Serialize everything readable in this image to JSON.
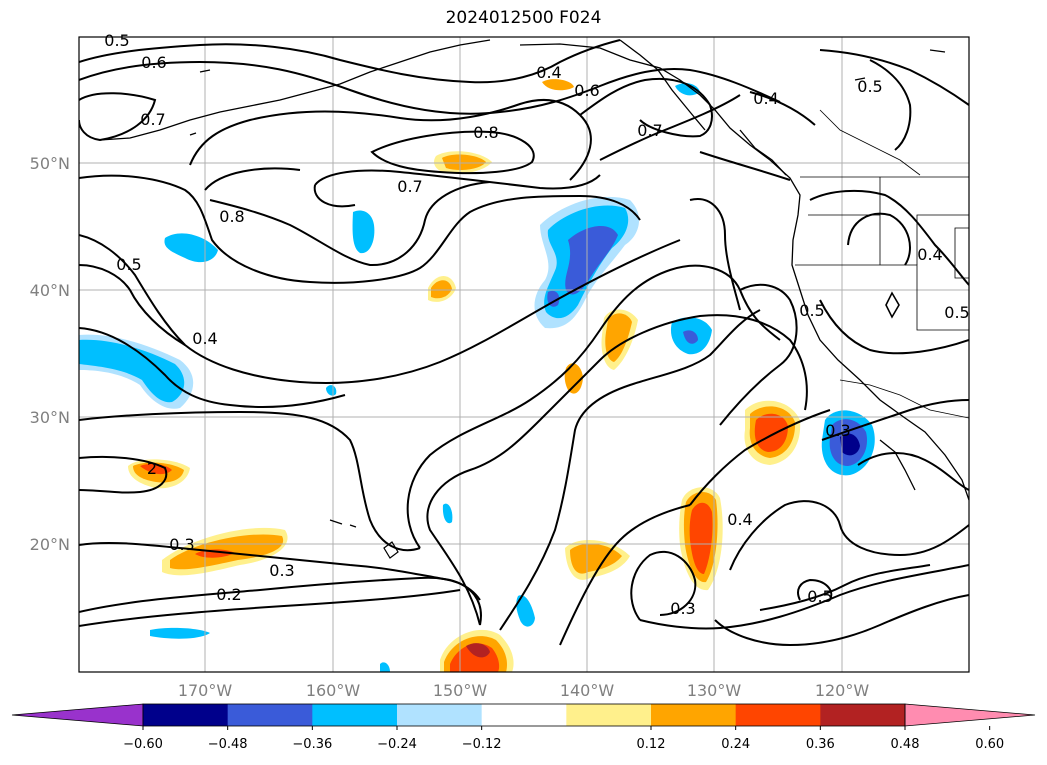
{
  "title": "2024012500 F024",
  "map": {
    "lat_labels": [
      "50°N",
      "40°N",
      "30°N",
      "20°N"
    ],
    "lon_labels": [
      "170°W",
      "160°W",
      "150°W",
      "140°W",
      "130°W",
      "120°W"
    ],
    "contour_labels": [
      "0.5",
      "0.6",
      "0.7",
      "0.4",
      "0.6",
      "0.7",
      "0.8",
      "0.7",
      "0.5",
      "0.4",
      "0.8",
      "0.5",
      "0.4",
      "0.5",
      "0.4",
      "0.5",
      "0.3",
      "2",
      "0.3",
      "0.3",
      "0.2",
      "0.4",
      "0.3",
      "0.5"
    ],
    "grid": true,
    "colors": {
      "contour": "#000000",
      "grid": "#b0b0b0",
      "coast": "#000000"
    }
  },
  "colorbar": {
    "ticks": [
      "−0.60",
      "−0.48",
      "−0.36",
      "−0.24",
      "−0.12",
      "0.12",
      "0.24",
      "0.36",
      "0.48",
      "0.60"
    ],
    "colors": [
      "#9932cc",
      "#00008b",
      "#3a5bd9",
      "#00bfff",
      "#b0e2ff",
      "#ffffff",
      "#fff08c",
      "#ffa500",
      "#ff4500",
      "#b22222",
      "#ff8cb0"
    ]
  }
}
